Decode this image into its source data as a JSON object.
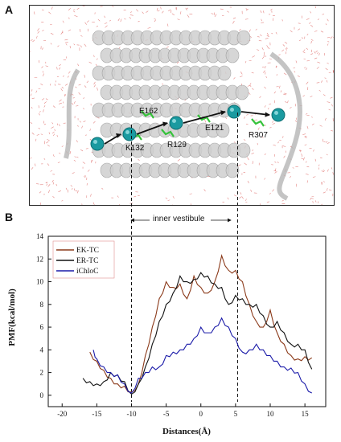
{
  "figure": {
    "panel_a_label": "A",
    "panel_b_label": "B",
    "residues": [
      "E162",
      "K132",
      "R129",
      "E121",
      "R307"
    ],
    "vestibule_label": "inner vestibule",
    "colors": {
      "ion": "#1a9aa0",
      "water": "#d9534f",
      "helix": "#cfcfcf",
      "residue": "#35c23a"
    }
  },
  "chart_data": {
    "type": "line",
    "title": "",
    "xlabel": "Distances(Å)",
    "ylabel": "PMF(kcal/mol)",
    "xlim": [
      -22,
      18
    ],
    "ylim": [
      -1,
      14
    ],
    "xticks": [
      -20,
      -15,
      -10,
      -5,
      0,
      5,
      10,
      15
    ],
    "yticks": [
      0,
      2,
      4,
      6,
      8,
      10,
      12,
      14
    ],
    "grid": false,
    "legend_position": "top-left",
    "vlines": [
      -10,
      5.3
    ],
    "series": [
      {
        "name": "EK-TC",
        "color": "#8b3a1a",
        "x": [
          -16,
          -15,
          -14,
          -13,
          -12,
          -11,
          -10,
          -9,
          -8,
          -7,
          -6,
          -5,
          -4,
          -3,
          -2,
          -1,
          0,
          1,
          2,
          3,
          4,
          5,
          6,
          7,
          8,
          9,
          10,
          11,
          12,
          13,
          14,
          15,
          16
        ],
        "y": [
          3.8,
          3.0,
          2.2,
          1.5,
          1.0,
          0.8,
          0.3,
          1.0,
          3.5,
          6.0,
          8.5,
          10.0,
          9.5,
          9.8,
          8.5,
          10.5,
          9.5,
          9.0,
          10.0,
          12.3,
          11.0,
          11.0,
          10.0,
          8.0,
          6.5,
          6.0,
          7.5,
          5.5,
          4.5,
          3.5,
          3.2,
          3.4,
          3.3
        ]
      },
      {
        "name": "ER-TC",
        "color": "#111111",
        "x": [
          -17,
          -16,
          -15,
          -14,
          -13,
          -12,
          -11,
          -10,
          -9,
          -8,
          -7,
          -6,
          -5,
          -4,
          -3,
          -2,
          -1,
          0,
          1,
          2,
          3,
          4,
          5,
          6,
          7,
          8,
          9,
          10,
          11,
          12,
          13,
          14,
          15,
          16
        ],
        "y": [
          1.5,
          1.2,
          1.0,
          1.2,
          2.0,
          1.8,
          1.2,
          0.1,
          1.0,
          2.5,
          4.5,
          6.5,
          8.0,
          9.0,
          10.5,
          10.0,
          10.2,
          10.8,
          10.5,
          9.8,
          9.5,
          8.0,
          8.8,
          8.5,
          8.0,
          8.0,
          7.0,
          6.0,
          6.5,
          5.5,
          4.5,
          4.5,
          4.0,
          2.3
        ]
      },
      {
        "name": "iChloC",
        "color": "#1a1aa8",
        "x": [
          -15.5,
          -15,
          -14,
          -13,
          -12,
          -11,
          -10,
          -9,
          -8,
          -7,
          -6,
          -5,
          -4,
          -3,
          -2,
          -1,
          0,
          1,
          2,
          3,
          4,
          5,
          6,
          7,
          8,
          9,
          10,
          11,
          12,
          13,
          14,
          15,
          16
        ],
        "y": [
          4.0,
          3.2,
          2.5,
          2.0,
          1.8,
          1.0,
          0.2,
          1.5,
          2.0,
          2.5,
          2.5,
          3.5,
          3.8,
          4.0,
          4.5,
          5.0,
          6.0,
          5.5,
          6.0,
          6.8,
          6.0,
          5.0,
          3.8,
          4.0,
          4.5,
          4.0,
          3.5,
          3.0,
          2.5,
          2.4,
          2.0,
          1.0,
          0.2
        ]
      }
    ]
  }
}
